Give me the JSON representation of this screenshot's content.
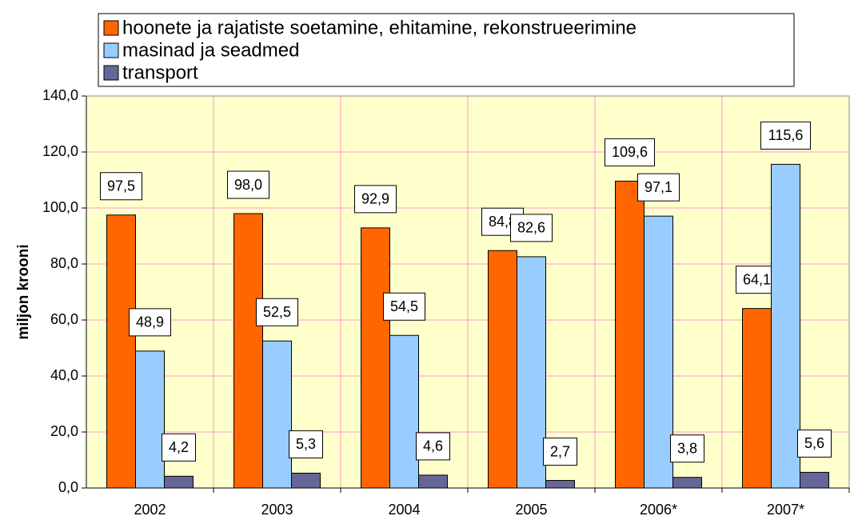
{
  "chart_data": {
    "type": "bar",
    "y_label": "miljon krooni",
    "categories": [
      "2002",
      "2003",
      "2004",
      "2005",
      "2006*",
      "2007*"
    ],
    "series": [
      {
        "name": "hoonete ja rajatiste soetamine, ehitamine, rekonstrueerimine",
        "color": "#ff6600",
        "values": [
          97.5,
          98.0,
          92.9,
          84.8,
          109.6,
          64.1
        ],
        "value_labels": [
          "97,5",
          "98,0",
          "92,9",
          "84,8",
          "109,6",
          "64,1"
        ]
      },
      {
        "name": "masinad ja seadmed",
        "color": "#99ccff",
        "values": [
          48.9,
          52.5,
          54.5,
          82.6,
          97.1,
          115.6
        ],
        "value_labels": [
          "48,9",
          "52,5",
          "54,5",
          "82,6",
          "97,1",
          "115,6"
        ]
      },
      {
        "name": "transport",
        "color": "#666699",
        "values": [
          4.2,
          5.3,
          4.6,
          2.7,
          3.8,
          5.6
        ],
        "value_labels": [
          "4,2",
          "5,3",
          "4,6",
          "2,7",
          "3,8",
          "5,6"
        ]
      }
    ],
    "ylim": [
      0,
      140
    ],
    "yticks": [
      {
        "value": 0,
        "label": "0,0"
      },
      {
        "value": 20,
        "label": "20,0"
      },
      {
        "value": 40,
        "label": "40,0"
      },
      {
        "value": 60,
        "label": "60,0"
      },
      {
        "value": 80,
        "label": "80,0"
      },
      {
        "value": 100,
        "label": "100,0"
      },
      {
        "value": 120,
        "label": "120,0"
      },
      {
        "value": 140,
        "label": "140,0"
      }
    ],
    "grid": true,
    "background": "#ffffcc",
    "grid_color": "#ff99cc"
  }
}
